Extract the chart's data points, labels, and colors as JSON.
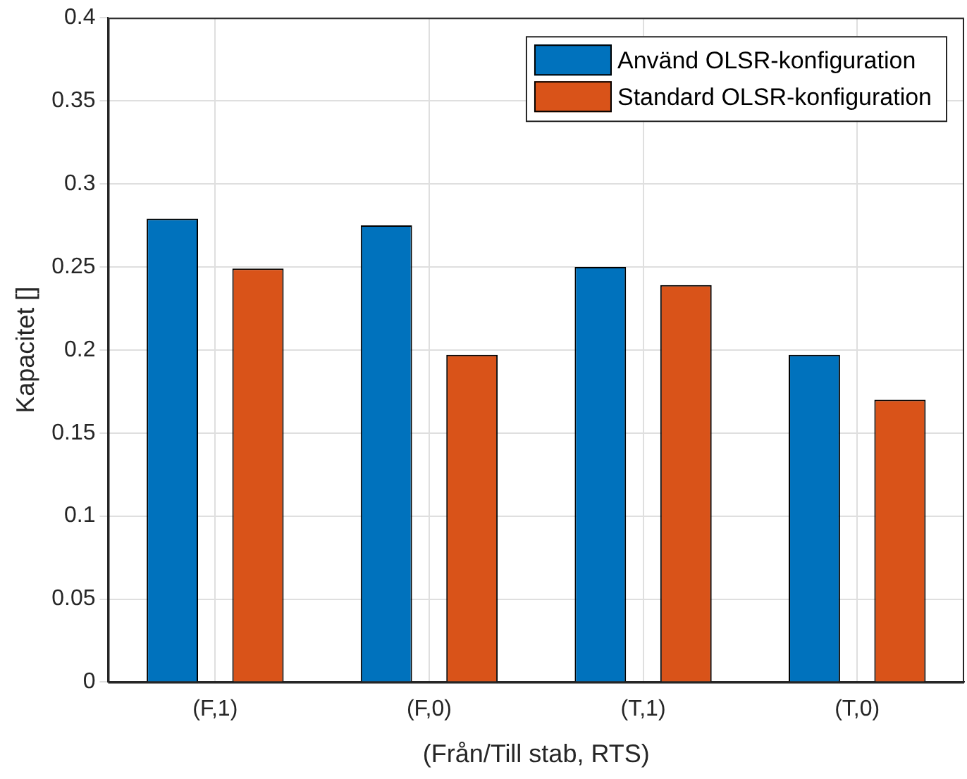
{
  "chart_data": {
    "type": "bar",
    "xlabel": "(Från/Till stab, RTS)",
    "ylabel": "Kapacitet []",
    "categories": [
      "(F,1)",
      "(F,0)",
      "(T,1)",
      "(T,0)"
    ],
    "series": [
      {
        "name": "Använd OLSR-konfiguration",
        "color": "#0072bd",
        "values": [
          0.279,
          0.275,
          0.25,
          0.197
        ]
      },
      {
        "name": "Standard OLSR-konfiguration",
        "color": "#d95319",
        "values": [
          0.249,
          0.197,
          0.239,
          0.17
        ]
      }
    ],
    "ylim": [
      0,
      0.4
    ],
    "yticks": [
      0,
      0.05,
      0.1,
      0.15,
      0.2,
      0.25,
      0.3,
      0.35,
      0.4
    ],
    "grid": true,
    "legend": "top right"
  }
}
